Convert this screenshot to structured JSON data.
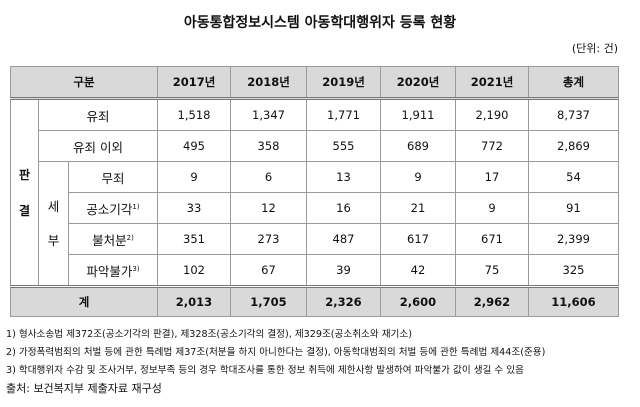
{
  "title": "아동통합정보시스템 아동학대행위자 등록 현황",
  "unit": "(단위: 건)",
  "table": {
    "header": [
      "구분",
      "2017년",
      "2018년",
      "2019년",
      "2020년",
      "2021년",
      "총계"
    ],
    "group_label": [
      "판",
      "결"
    ],
    "subgroup_label": [
      "세",
      "부"
    ],
    "rows": [
      {
        "label": "유죄",
        "values": [
          "1,518",
          "1,347",
          "1,771",
          "1,911",
          "2,190",
          "8,737"
        ]
      },
      {
        "label": "유죄 이외",
        "values": [
          "495",
          "358",
          "555",
          "689",
          "772",
          "2,869"
        ]
      },
      {
        "label": "무죄",
        "values": [
          "9",
          "6",
          "13",
          "9",
          "17",
          "54"
        ]
      },
      {
        "label": "공소기각",
        "note": "1)",
        "values": [
          "33",
          "12",
          "16",
          "21",
          "9",
          "91"
        ]
      },
      {
        "label": "불처분",
        "note": "2)",
        "values": [
          "351",
          "273",
          "487",
          "617",
          "671",
          "2,399"
        ]
      },
      {
        "label": "파악불가",
        "note": "3)",
        "values": [
          "102",
          "67",
          "39",
          "42",
          "75",
          "325"
        ]
      }
    ],
    "total": {
      "label": "계",
      "values": [
        "2,013",
        "1,705",
        "2,326",
        "2,600",
        "2,962",
        "11,606"
      ]
    }
  },
  "footnotes": [
    "1) 형사소송법 제372조(공소기각의 판결), 제328조(공소기각의 결정), 제329조(공소취소와 재기소)",
    "2) 가정폭력범죄의 처벌 등에 관한 특례법 제37조(처분을 하지 아니한다는 결정), 아동학대범죄의 처벌 등에 관한 특례법 제44조(준용)",
    "3) 학대행위자 수감 및 조사거부, 정보부족 등의 경우 학대조사를 통한 정보 취득에 제한사항 발생하여 파악불가 값이 생길 수 있음"
  ],
  "source": "출처: 보건복지부 제출자료 재구성"
}
